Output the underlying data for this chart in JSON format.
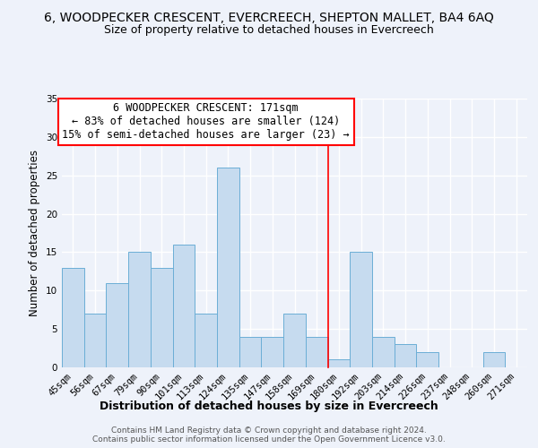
{
  "title": "6, WOODPECKER CRESCENT, EVERCREECH, SHEPTON MALLET, BA4 6AQ",
  "subtitle": "Size of property relative to detached houses in Evercreech",
  "xlabel": "Distribution of detached houses by size in Evercreech",
  "ylabel": "Number of detached properties",
  "bar_labels": [
    "45sqm",
    "56sqm",
    "67sqm",
    "79sqm",
    "90sqm",
    "101sqm",
    "113sqm",
    "124sqm",
    "135sqm",
    "147sqm",
    "158sqm",
    "169sqm",
    "180sqm",
    "192sqm",
    "203sqm",
    "214sqm",
    "226sqm",
    "237sqm",
    "248sqm",
    "260sqm",
    "271sqm"
  ],
  "bar_values": [
    13,
    7,
    11,
    15,
    13,
    16,
    7,
    26,
    4,
    4,
    7,
    4,
    1,
    15,
    4,
    3,
    2,
    0,
    0,
    2,
    0
  ],
  "bar_color": "#c6dbef",
  "bar_edge_color": "#6baed6",
  "vline_after_index": 11,
  "vline_color": "red",
  "ylim": [
    0,
    35
  ],
  "yticks": [
    0,
    5,
    10,
    15,
    20,
    25,
    30,
    35
  ],
  "annotation_title": "6 WOODPECKER CRESCENT: 171sqm",
  "annotation_line1": "← 83% of detached houses are smaller (124)",
  "annotation_line2": "15% of semi-detached houses are larger (23) →",
  "annotation_box_color": "white",
  "annotation_box_edgecolor": "red",
  "footer_line1": "Contains HM Land Registry data © Crown copyright and database right 2024.",
  "footer_line2": "Contains public sector information licensed under the Open Government Licence v3.0.",
  "background_color": "#eef2fa",
  "grid_color": "white",
  "title_fontsize": 10,
  "subtitle_fontsize": 9,
  "xlabel_fontsize": 9,
  "ylabel_fontsize": 8.5,
  "tick_fontsize": 7.5,
  "annotation_fontsize": 8.5,
  "footer_fontsize": 6.5
}
